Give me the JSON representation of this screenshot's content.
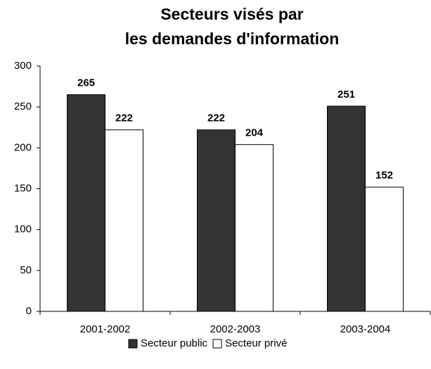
{
  "chart_data": {
    "type": "bar",
    "title": [
      "Secteurs visés par",
      "les demandes d'information"
    ],
    "categories": [
      "2001-2002",
      "2002-2003",
      "2003-2004"
    ],
    "series": [
      {
        "name": "Secteur public",
        "color": "#333333",
        "values": [
          265,
          222,
          251
        ]
      },
      {
        "name": "Secteur privé",
        "color": "#ffffff",
        "values": [
          222,
          204,
          152
        ]
      }
    ],
    "ylim": [
      0,
      300
    ],
    "yticks": [
      0,
      50,
      100,
      150,
      200,
      250,
      300
    ],
    "legend": "bottom"
  }
}
